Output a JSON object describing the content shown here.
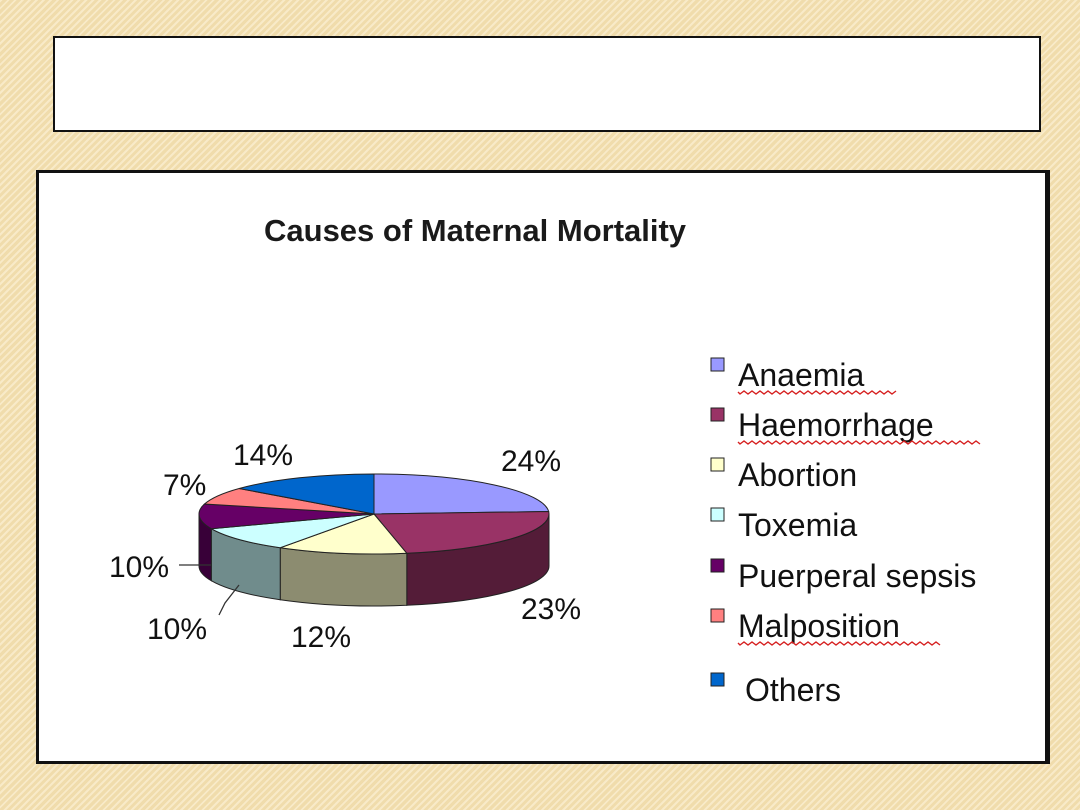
{
  "title_box_text": "",
  "chart_data": {
    "type": "pie",
    "title": "Causes of Maternal Mortality",
    "categories": [
      "Anaemia",
      "Haemorrhage",
      "Abortion",
      "Toxemia",
      "Puerperal sepsis",
      "Malposition",
      "Others"
    ],
    "values": [
      24,
      23,
      12,
      10,
      10,
      7,
      14
    ],
    "data_labels": [
      "24%",
      "23%",
      "12%",
      "10%",
      "10%",
      "7%",
      "14%"
    ],
    "colors": [
      "#9999ff",
      "#993366",
      "#ffffcc",
      "#ccffff",
      "#660066",
      "#ff8080",
      "#0066cc"
    ],
    "style": "3d-exploded-pie",
    "legend_position": "right"
  }
}
